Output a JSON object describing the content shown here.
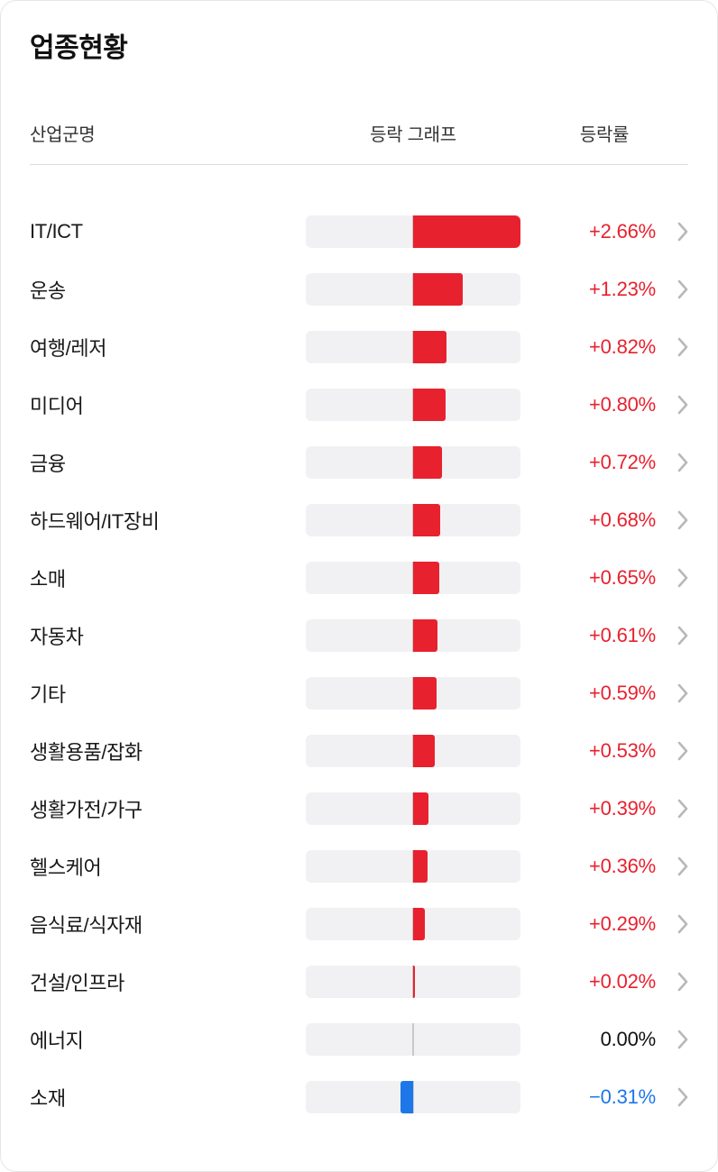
{
  "title": "업종현황",
  "columns": {
    "name": "산업군명",
    "graph": "등락 그래프",
    "rate": "등락률"
  },
  "colors": {
    "positive": "#e8212e",
    "negative": "#1d77e8",
    "neutral": "#111111",
    "track": "#f1f1f3",
    "centerline": "#c8c8c8",
    "chevron": "#b8b8b8"
  },
  "rows": [
    {
      "name": "IT/ICT",
      "value": 2.66,
      "rate_label": "+2.66%"
    },
    {
      "name": "운송",
      "value": 1.23,
      "rate_label": "+1.23%"
    },
    {
      "name": "여행/레저",
      "value": 0.82,
      "rate_label": "+0.82%"
    },
    {
      "name": "미디어",
      "value": 0.8,
      "rate_label": "+0.80%"
    },
    {
      "name": "금융",
      "value": 0.72,
      "rate_label": "+0.72%"
    },
    {
      "name": "하드웨어/IT장비",
      "value": 0.68,
      "rate_label": "+0.68%"
    },
    {
      "name": "소매",
      "value": 0.65,
      "rate_label": "+0.65%"
    },
    {
      "name": "자동차",
      "value": 0.61,
      "rate_label": "+0.61%"
    },
    {
      "name": "기타",
      "value": 0.59,
      "rate_label": "+0.59%"
    },
    {
      "name": "생활용품/잡화",
      "value": 0.53,
      "rate_label": "+0.53%"
    },
    {
      "name": "생활가전/가구",
      "value": 0.39,
      "rate_label": "+0.39%"
    },
    {
      "name": "헬스케어",
      "value": 0.36,
      "rate_label": "+0.36%"
    },
    {
      "name": "음식료/식자재",
      "value": 0.29,
      "rate_label": "+0.29%"
    },
    {
      "name": "건설/인프라",
      "value": 0.02,
      "rate_label": "+0.02%"
    },
    {
      "name": "에너지",
      "value": 0.0,
      "rate_label": "0.00%"
    },
    {
      "name": "소재",
      "value": -0.31,
      "rate_label": "−0.31%"
    }
  ],
  "chart_data": {
    "type": "bar",
    "orientation": "horizontal-diverging",
    "title": "업종현황",
    "categories": [
      "IT/ICT",
      "운송",
      "여행/레저",
      "미디어",
      "금융",
      "하드웨어/IT장비",
      "소매",
      "자동차",
      "기타",
      "생활용품/잡화",
      "생활가전/가구",
      "헬스케어",
      "음식료/식자재",
      "건설/인프라",
      "에너지",
      "소재"
    ],
    "values": [
      2.66,
      1.23,
      0.82,
      0.8,
      0.72,
      0.68,
      0.65,
      0.61,
      0.59,
      0.53,
      0.39,
      0.36,
      0.29,
      0.02,
      0.0,
      -0.31
    ],
    "value_labels": [
      "+2.66%",
      "+1.23%",
      "+0.82%",
      "+0.80%",
      "+0.72%",
      "+0.68%",
      "+0.65%",
      "+0.61%",
      "+0.59%",
      "+0.53%",
      "+0.39%",
      "+0.36%",
      "+0.29%",
      "+0.02%",
      "0.00%",
      "−0.31%"
    ],
    "xlim": [
      -2.66,
      2.66
    ],
    "ylabel": "산업군명",
    "xlabel": "등락률",
    "grid": false,
    "legend": "none"
  }
}
